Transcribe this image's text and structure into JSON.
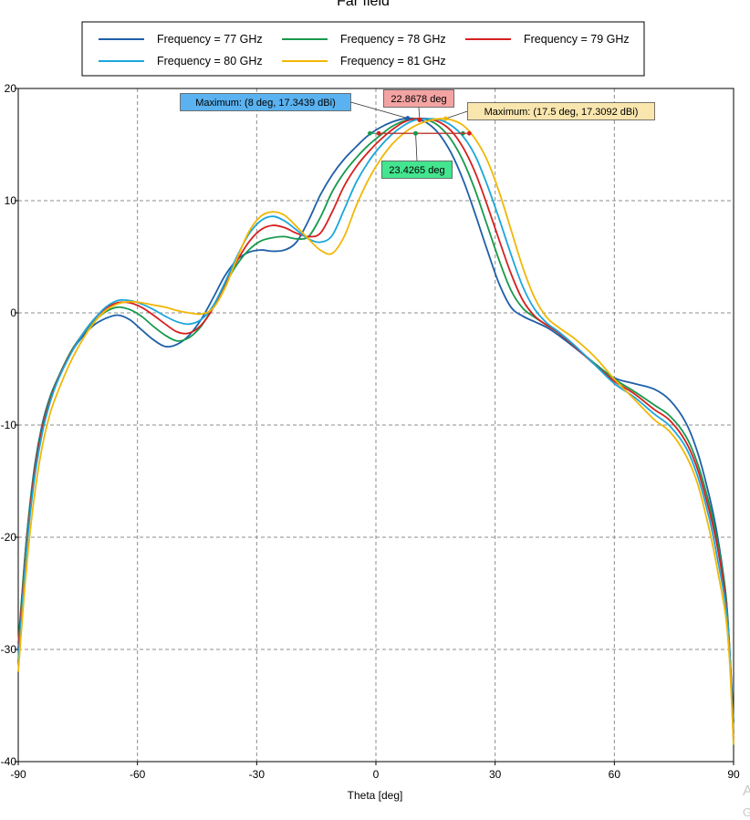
{
  "chart_data": {
    "type": "line",
    "title": "Far field",
    "xlabel": "Theta [deg]",
    "ylabel": "",
    "xlim": [
      -90,
      90
    ],
    "ylim": [
      -40,
      20
    ],
    "xticks": [
      -90,
      -60,
      -30,
      0,
      30,
      60,
      90
    ],
    "yticks": [
      -40,
      -30,
      -20,
      -10,
      0,
      10,
      20
    ],
    "grid": true,
    "legend_placement": "top-center",
    "series": [
      {
        "name": "Frequency = 77 GHz",
        "color": "#1f5fa8",
        "x": [
          -90,
          -88,
          -86,
          -84,
          -82,
          -80,
          -77,
          -74,
          -71,
          -68,
          -65,
          -62,
          -59,
          -56,
          -53,
          -50,
          -47,
          -44,
          -41,
          -38,
          -35,
          -32,
          -29,
          -26,
          -23,
          -20,
          -17,
          -14,
          -11,
          -8,
          -5,
          -2,
          1,
          4,
          7,
          10,
          13,
          16,
          19,
          22,
          25,
          28,
          31,
          34,
          37,
          40,
          43,
          46,
          50,
          55,
          60,
          65,
          70,
          74,
          78,
          81,
          84,
          86,
          88,
          89,
          90
        ],
        "y": [
          -30,
          -20.5,
          -14,
          -10,
          -7.5,
          -5.8,
          -3.7,
          -2.2,
          -1.1,
          -0.5,
          -0.2,
          -0.6,
          -1.5,
          -2.4,
          -3,
          -2.8,
          -2,
          -0.6,
          1.3,
          3.3,
          4.7,
          5.4,
          5.6,
          5.5,
          5.6,
          6.3,
          8.2,
          10.5,
          12.3,
          13.7,
          14.8,
          15.8,
          16.5,
          17,
          17.3,
          17.3,
          16.9,
          15.9,
          14.2,
          11.8,
          8.8,
          5.6,
          2.6,
          0.5,
          -0.3,
          -0.8,
          -1.3,
          -2,
          -3.1,
          -4.5,
          -5.8,
          -6.3,
          -6.8,
          -7.8,
          -9.8,
          -12.5,
          -16.5,
          -20,
          -25,
          -30,
          -36.5
        ]
      },
      {
        "name": "Frequency = 78 GHz",
        "color": "#17994d",
        "x": [
          -90,
          -88,
          -86,
          -84,
          -82,
          -80,
          -77,
          -74,
          -71,
          -68,
          -65,
          -62,
          -59,
          -56,
          -53,
          -50,
          -47,
          -44,
          -41,
          -38,
          -35,
          -32,
          -29,
          -26,
          -23,
          -20,
          -17,
          -14,
          -11,
          -8,
          -5,
          -2,
          1,
          4,
          7,
          10,
          13,
          16,
          19,
          22,
          25,
          28,
          31,
          34,
          37,
          40,
          43,
          46,
          50,
          55,
          60,
          65,
          70,
          74,
          78,
          81,
          84,
          86,
          88,
          89,
          90
        ],
        "y": [
          -29.5,
          -20.5,
          -14.2,
          -10.2,
          -7.6,
          -5.8,
          -3.6,
          -2,
          -0.8,
          0.1,
          0.5,
          0.3,
          -0.3,
          -1.2,
          -2,
          -2.5,
          -2.2,
          -1.2,
          0.5,
          2.5,
          4.3,
          5.6,
          6.4,
          6.7,
          6.8,
          6.6,
          6.8,
          8.5,
          10.8,
          12.5,
          13.8,
          14.9,
          15.8,
          16.6,
          17.1,
          17.3,
          17.2,
          16.6,
          15.4,
          13.5,
          10.9,
          7.8,
          4.7,
          2,
          0.4,
          -0.4,
          -1.1,
          -1.8,
          -3,
          -4.5,
          -5.9,
          -7,
          -8.2,
          -9.2,
          -11,
          -13.5,
          -17.2,
          -20.5,
          -25,
          -30,
          -37.5
        ]
      },
      {
        "name": "Frequency = 79 GHz",
        "color": "#d62020",
        "x": [
          -90,
          -88,
          -86,
          -84,
          -82,
          -80,
          -77,
          -74,
          -71,
          -68,
          -65,
          -62,
          -59,
          -56,
          -53,
          -50,
          -47,
          -44,
          -41,
          -38,
          -35,
          -32,
          -29,
          -26,
          -23,
          -20,
          -17,
          -14,
          -11,
          -8,
          -5,
          -2,
          1,
          4,
          7,
          10,
          13,
          16,
          19,
          22,
          25,
          28,
          31,
          34,
          37,
          40,
          43,
          46,
          50,
          55,
          60,
          65,
          70,
          74,
          78,
          81,
          84,
          86,
          88,
          89,
          90
        ],
        "y": [
          -30,
          -21,
          -14.5,
          -10.4,
          -7.8,
          -5.9,
          -3.7,
          -2,
          -0.6,
          0.4,
          0.9,
          0.9,
          0.5,
          -0.2,
          -1,
          -1.7,
          -1.8,
          -1.1,
          0.4,
          2.6,
          4.6,
          6.3,
          7.4,
          7.8,
          7.6,
          7.1,
          6.8,
          7.1,
          9,
          11.3,
          13,
          14.3,
          15.4,
          16.3,
          17,
          17.3,
          17.3,
          17,
          16.2,
          14.7,
          12.5,
          9.6,
          6.5,
          3.5,
          1.1,
          -0.3,
          -1.1,
          -1.8,
          -3,
          -4.6,
          -6.1,
          -7.2,
          -8.6,
          -9.6,
          -11.5,
          -14,
          -17.8,
          -21,
          -25.5,
          -30,
          -38
        ]
      },
      {
        "name": "Frequency = 80 GHz",
        "color": "#1ba6dc",
        "x": [
          -90,
          -88,
          -86,
          -84,
          -82,
          -80,
          -77,
          -74,
          -71,
          -68,
          -65,
          -62,
          -59,
          -56,
          -53,
          -50,
          -47,
          -44,
          -41,
          -38,
          -35,
          -32,
          -29,
          -26,
          -23,
          -20,
          -17,
          -14,
          -11,
          -8,
          -5,
          -2,
          1,
          4,
          7,
          10,
          13,
          16,
          19,
          22,
          25,
          28,
          31,
          34,
          37,
          40,
          43,
          46,
          50,
          55,
          60,
          65,
          70,
          74,
          78,
          81,
          84,
          86,
          88,
          89,
          90
        ],
        "y": [
          -31,
          -21.5,
          -15,
          -10.8,
          -8,
          -6,
          -3.8,
          -2,
          -0.6,
          0.5,
          1.1,
          1.1,
          0.8,
          0.3,
          -0.3,
          -0.8,
          -1,
          -0.6,
          0.6,
          2.7,
          5,
          7,
          8.2,
          8.6,
          8.2,
          7.4,
          6.6,
          6.3,
          6.9,
          9.2,
          11.6,
          13.4,
          14.8,
          15.9,
          16.7,
          17.2,
          17.3,
          17.2,
          16.7,
          15.7,
          14,
          11.4,
          8.4,
          5.2,
          2.3,
          0.3,
          -0.9,
          -1.7,
          -2.9,
          -4.6,
          -6.3,
          -7.5,
          -9,
          -10.1,
          -12,
          -14.6,
          -18.5,
          -22,
          -26,
          -30,
          -38.5
        ]
      },
      {
        "name": "Frequency = 81 GHz",
        "color": "#f2b705",
        "x": [
          -90,
          -88,
          -86,
          -84,
          -82,
          -80,
          -77,
          -74,
          -71,
          -68,
          -65,
          -62,
          -59,
          -56,
          -53,
          -50,
          -47,
          -44,
          -41,
          -38,
          -35,
          -32,
          -29,
          -26,
          -23,
          -20,
          -17,
          -14,
          -11,
          -8,
          -5,
          -2,
          1,
          4,
          7,
          10,
          13,
          16,
          19,
          22,
          25,
          28,
          31,
          34,
          37,
          40,
          43,
          46,
          50,
          55,
          60,
          65,
          70,
          74,
          78,
          81,
          84,
          86,
          88,
          89,
          90
        ],
        "y": [
          -32,
          -23,
          -16.5,
          -12,
          -9,
          -7,
          -4.5,
          -2.5,
          -0.9,
          0.2,
          0.8,
          1,
          0.9,
          0.7,
          0.5,
          0.2,
          0,
          -0.1,
          0.4,
          2.2,
          4.8,
          7.2,
          8.6,
          9,
          8.7,
          7.7,
          6.6,
          5.6,
          5.3,
          6.8,
          9.5,
          11.8,
          13.6,
          15,
          16,
          16.7,
          17.1,
          17.3,
          17.2,
          16.7,
          15.5,
          13.6,
          10.8,
          7.4,
          4,
          1.3,
          -0.4,
          -1.3,
          -2.3,
          -3.9,
          -5.9,
          -7.7,
          -9.5,
          -10.6,
          -12.7,
          -15.3,
          -19.5,
          -23,
          -27,
          -31,
          -38.5
        ]
      }
    ],
    "annotations": [
      {
        "label": "Maximum: (8 deg, 17.3439 dBi)",
        "point_x": 8,
        "point_y": 17.3439,
        "box_color": "#5ab2f0",
        "arrow_color": "#1f5fa8"
      },
      {
        "label": "22.8678 deg",
        "point_x": 11,
        "point_y": 17.2,
        "box_color": "#f4a3a3",
        "arrow_color": "#d62020"
      },
      {
        "label": "Maximum: (17.5 deg, 17.3092 dBi)",
        "point_x": 17.5,
        "point_y": 17.3092,
        "box_color": "#f9e6ae",
        "arrow_color": "#f2b705"
      },
      {
        "label": "23.4265 deg",
        "point_x": 10,
        "point_y": 16,
        "box_color": "#44e58f",
        "arrow_color": "#17994d"
      }
    ],
    "beamwidth_markers": [
      {
        "color": "#17994d",
        "x_from": -1.5,
        "x_to": 21.9,
        "y": 16
      },
      {
        "color": "#d62020",
        "x_from": 0.7,
        "x_to": 23.5,
        "y": 16
      }
    ]
  },
  "watermark": {
    "line1": "A",
    "line2": "G"
  }
}
